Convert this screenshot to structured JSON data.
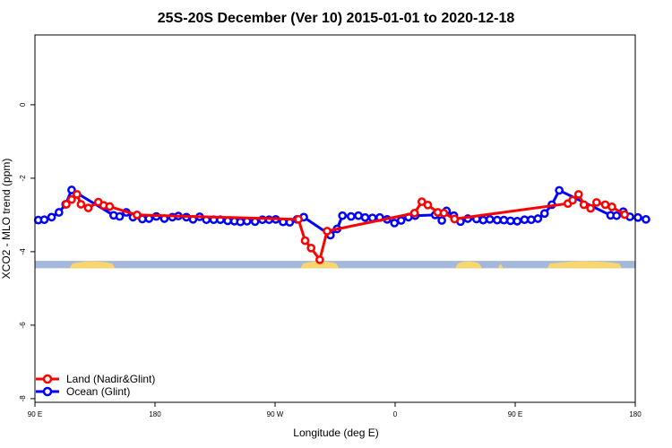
{
  "chart_data": {
    "type": "line",
    "title": "25S-20S December (Ver 10)   2015-01-01 to 2020-12-18",
    "xlabel": "Longitude (deg E)",
    "ylabel": "XCO2 - MLO trend (ppm)",
    "xlim": [
      90,
      540
    ],
    "ylim": [
      -8.1,
      1.9
    ],
    "x_ticks": [
      90,
      180,
      270,
      360,
      450,
      540
    ],
    "x_tick_labels": [
      "90 E",
      "180",
      "90 W",
      "0",
      "90 E",
      "180"
    ],
    "y_ticks": [
      0,
      -2,
      -4,
      -6,
      -8
    ],
    "y_tick_labels": [
      "0",
      "-2",
      "-4",
      "-6",
      "-8"
    ],
    "grid": false,
    "legend_position": "bottom-left",
    "colors": {
      "land": "#ff0000",
      "ocean": "#0000ff",
      "land_band": "#f9d56e",
      "ocean_band": "#a4b8dc"
    },
    "surface_band": {
      "y_range": [
        -4.45,
        -4.25
      ],
      "land_segments": [
        [
          116,
          150
        ],
        [
          289,
          318
        ],
        [
          405,
          425
        ],
        [
          437,
          441
        ],
        [
          474,
          530
        ]
      ]
    },
    "series": [
      {
        "name": "Land (Nadir&Glint)",
        "color": "#ff0000",
        "points": [
          [
            113.5,
            -2.71
          ],
          [
            117.5,
            -2.58
          ],
          [
            121.5,
            -2.44
          ],
          [
            124.5,
            -2.71
          ],
          [
            130,
            -2.81
          ],
          [
            137.5,
            -2.65
          ],
          [
            141.5,
            -2.74
          ],
          [
            146,
            -2.77
          ],
          [
            166.5,
            -3.0
          ],
          [
            287.5,
            -3.12
          ],
          [
            292.5,
            -3.7
          ],
          [
            297,
            -3.9
          ],
          [
            303.5,
            -4.22
          ],
          [
            309,
            -3.44
          ],
          [
            374.5,
            -2.95
          ],
          [
            380,
            -2.64
          ],
          [
            384.5,
            -2.73
          ],
          [
            392,
            -2.93
          ],
          [
            396.5,
            -2.95
          ],
          [
            404.5,
            -3.11
          ],
          [
            489.5,
            -2.69
          ],
          [
            493,
            -2.6
          ],
          [
            497.5,
            -2.44
          ],
          [
            501.5,
            -2.72
          ],
          [
            506.5,
            -2.82
          ],
          [
            511,
            -2.66
          ],
          [
            517.5,
            -2.72
          ],
          [
            522.5,
            -2.78
          ],
          [
            532,
            -2.99
          ]
        ]
      },
      {
        "name": "Ocean (Glint)",
        "color": "#0000ff",
        "points": [
          [
            92.5,
            -3.14
          ],
          [
            97,
            -3.13
          ],
          [
            102.5,
            -3.06
          ],
          [
            108,
            -2.93
          ],
          [
            113,
            -2.71
          ],
          [
            117.5,
            -2.32
          ],
          [
            149,
            -3.01
          ],
          [
            153.5,
            -3.04
          ],
          [
            158.5,
            -2.93
          ],
          [
            163.5,
            -3.06
          ],
          [
            170.5,
            -3.11
          ],
          [
            175.5,
            -3.1
          ],
          [
            181,
            -3.04
          ],
          [
            187,
            -3.1
          ],
          [
            193,
            -3.06
          ],
          [
            197.5,
            -3.03
          ],
          [
            203.5,
            -3.06
          ],
          [
            208.5,
            -3.12
          ],
          [
            213.5,
            -3.05
          ],
          [
            218.5,
            -3.13
          ],
          [
            224,
            -3.13
          ],
          [
            229,
            -3.13
          ],
          [
            234.5,
            -3.16
          ],
          [
            239.5,
            -3.17
          ],
          [
            244,
            -3.19
          ],
          [
            249,
            -3.17
          ],
          [
            255,
            -3.18
          ],
          [
            260.5,
            -3.13
          ],
          [
            265.5,
            -3.13
          ],
          [
            270.5,
            -3.12
          ],
          [
            276,
            -3.19
          ],
          [
            281,
            -3.2
          ],
          [
            286.5,
            -3.12
          ],
          [
            291.5,
            -3.06
          ],
          [
            311.5,
            -3.55
          ],
          [
            316.5,
            -3.38
          ],
          [
            320.5,
            -3.02
          ],
          [
            327,
            -3.04
          ],
          [
            332.5,
            -3.02
          ],
          [
            337.5,
            -3.07
          ],
          [
            343,
            -3.08
          ],
          [
            348.5,
            -3.07
          ],
          [
            354,
            -3.12
          ],
          [
            359.5,
            -3.22
          ],
          [
            364.5,
            -3.15
          ],
          [
            370,
            -3.06
          ],
          [
            375,
            -3.02
          ],
          [
            390,
            -3.0
          ],
          [
            395,
            -3.15
          ],
          [
            398.5,
            -2.89
          ],
          [
            404,
            -3.02
          ],
          [
            409,
            -3.18
          ],
          [
            414.5,
            -3.1
          ],
          [
            421,
            -3.11
          ],
          [
            426,
            -3.14
          ],
          [
            431,
            -3.12
          ],
          [
            436.5,
            -3.14
          ],
          [
            441.5,
            -3.14
          ],
          [
            446.5,
            -3.16
          ],
          [
            451.5,
            -3.17
          ],
          [
            457,
            -3.13
          ],
          [
            462,
            -3.13
          ],
          [
            467,
            -3.1
          ],
          [
            472,
            -2.96
          ],
          [
            477.5,
            -2.72
          ],
          [
            483,
            -2.33
          ],
          [
            521.5,
            -3.01
          ],
          [
            526,
            -3.02
          ],
          [
            531,
            -2.91
          ],
          [
            536,
            -3.05
          ],
          [
            542,
            -3.07
          ],
          [
            548,
            -3.12
          ]
        ]
      }
    ]
  }
}
